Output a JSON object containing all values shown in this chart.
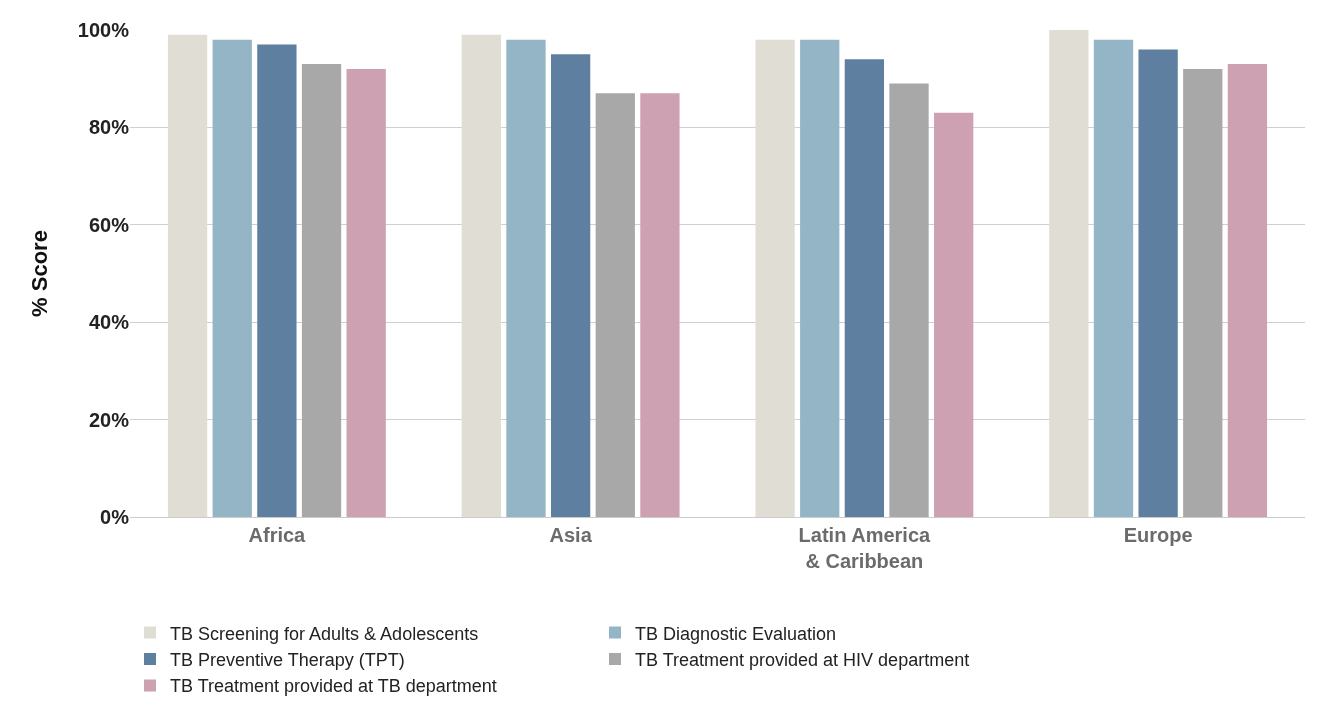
{
  "chart_data": {
    "type": "bar",
    "ylabel": "% Score",
    "categories": [
      "Africa",
      "Asia",
      "Latin America\n& Caribbean",
      "Europe"
    ],
    "series": [
      {
        "name": "TB Screening for Adults & Adolescents",
        "color": "#e0ddd5",
        "values": [
          99,
          99,
          98,
          100
        ]
      },
      {
        "name": "TB Diagnostic Evaluation",
        "color": "#94b5c6",
        "values": [
          98,
          98,
          98,
          98
        ]
      },
      {
        "name": "TB Preventive Therapy (TPT)",
        "color": "#5f7fa0",
        "values": [
          97,
          95,
          94,
          96
        ]
      },
      {
        "name": "TB Treatment provided at HIV department",
        "color": "#a8a8a8",
        "values": [
          93,
          87,
          89,
          92
        ]
      },
      {
        "name": "TB Treatment provided at TB department",
        "color": "#cda1b1",
        "values": [
          92,
          87,
          83,
          93
        ]
      }
    ],
    "ylim": [
      0,
      100
    ],
    "yticks": [
      {
        "value": 0,
        "label": "0%"
      },
      {
        "value": 20,
        "label": "20%"
      },
      {
        "value": 40,
        "label": "40%"
      },
      {
        "value": 60,
        "label": "60%"
      },
      {
        "value": 80,
        "label": "80%"
      },
      {
        "value": 100,
        "label": "100%"
      }
    ],
    "grid": "y",
    "legend": "bottom"
  }
}
